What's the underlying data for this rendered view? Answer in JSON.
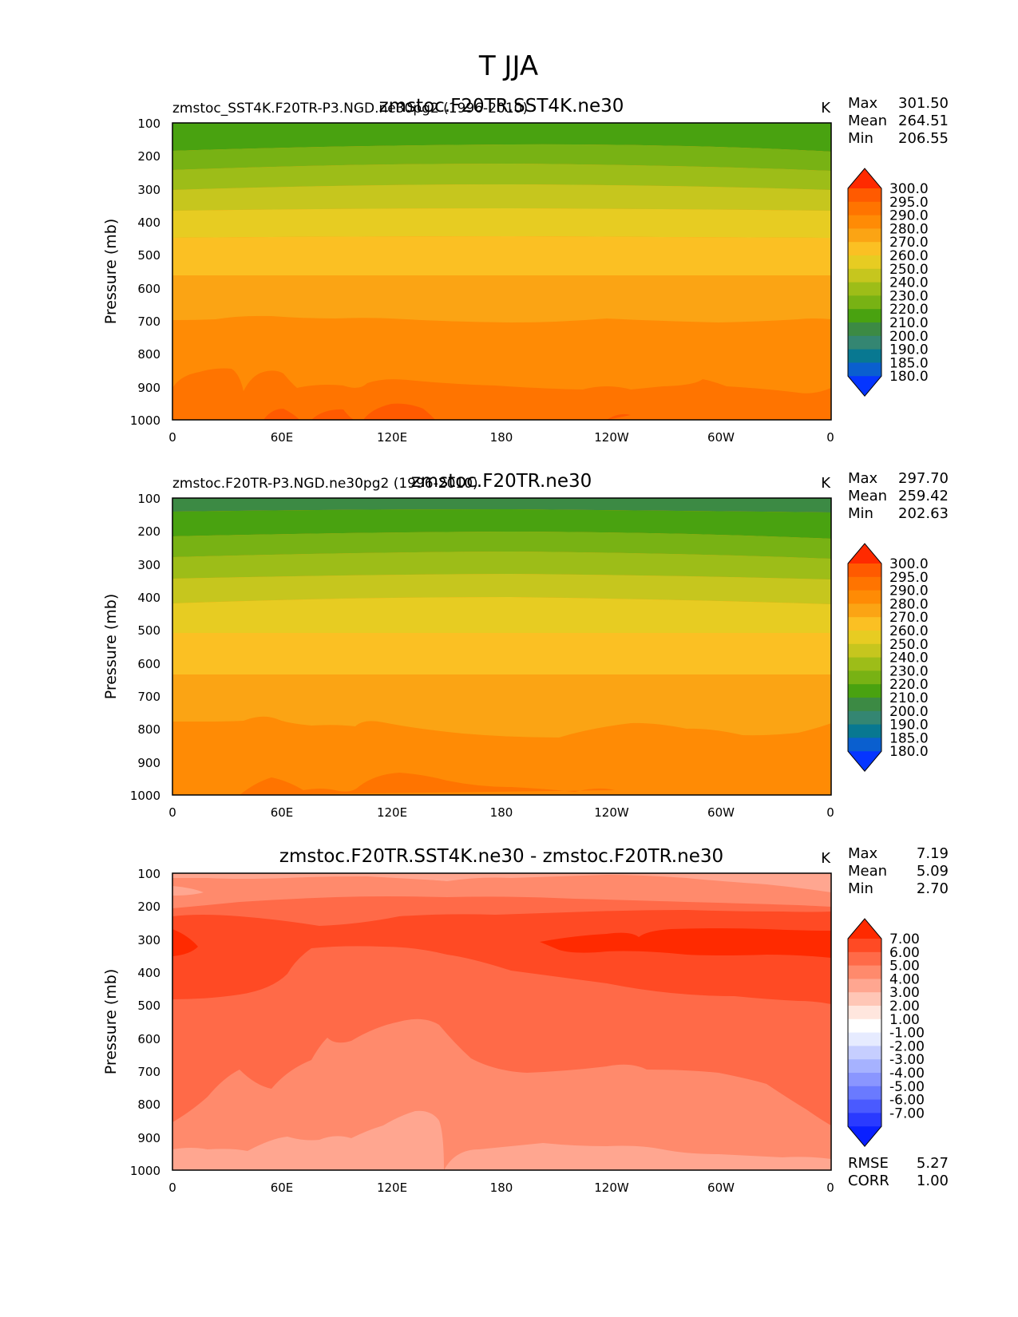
{
  "figure_title": "T JJA",
  "units": "K",
  "ylabel": "Pressure (mb)",
  "x_ticks": [
    "0",
    "60E",
    "120E",
    "180",
    "120W",
    "60W",
    "0"
  ],
  "y_ticks": [
    "100",
    "200",
    "300",
    "400",
    "500",
    "600",
    "700",
    "800",
    "900",
    "1000"
  ],
  "stats_labels": {
    "max": "Max",
    "mean": "Mean",
    "min": "Min",
    "rmse": "RMSE",
    "corr": "CORR"
  },
  "panels": [
    {
      "title": "zmstoc.F20TR.SST4K.ne30",
      "left_label": "zmstoc_SST4K.F20TR-P3.NGD.ne30pg2 (1996-2010)",
      "stats": {
        "max": "301.50",
        "mean": "264.51",
        "min": "206.55"
      },
      "colorbar_labels": [
        "300.0",
        "295.0",
        "290.0",
        "280.0",
        "270.0",
        "260.0",
        "250.0",
        "240.0",
        "230.0",
        "220.0",
        "210.0",
        "200.0",
        "190.0",
        "185.0",
        "180.0"
      ]
    },
    {
      "title": "zmstoc.F20TR.ne30",
      "left_label": "zmstoc.F20TR-P3.NGD.ne30pg2 (1996-2010)",
      "stats": {
        "max": "297.70",
        "mean": "259.42",
        "min": "202.63"
      },
      "colorbar_labels": [
        "300.0",
        "295.0",
        "290.0",
        "280.0",
        "270.0",
        "260.0",
        "250.0",
        "240.0",
        "230.0",
        "220.0",
        "210.0",
        "200.0",
        "190.0",
        "185.0",
        "180.0"
      ]
    },
    {
      "title": "zmstoc.F20TR.SST4K.ne30 - zmstoc.F20TR.ne30",
      "left_label": "",
      "stats": {
        "max": "7.19",
        "mean": "5.09",
        "min": "2.70",
        "rmse": "5.27",
        "corr": "1.00"
      },
      "colorbar_labels": [
        "7.00",
        "6.00",
        "5.00",
        "4.00",
        "3.00",
        "2.00",
        "1.00",
        "-1.00",
        "-2.00",
        "-3.00",
        "-4.00",
        "-5.00",
        "-6.00",
        "-7.00"
      ]
    }
  ],
  "chart_data": [
    {
      "type": "heatmap",
      "title": "zmstoc.F20TR.SST4K.ne30",
      "xlabel": "",
      "ylabel": "Pressure (mb)",
      "xlim": [
        0,
        360
      ],
      "ylim": [
        1000,
        100
      ],
      "units": "K",
      "contour_levels": [
        180,
        185,
        190,
        200,
        210,
        220,
        230,
        240,
        250,
        260,
        270,
        280,
        290,
        295,
        300
      ],
      "colors": [
        "#ff2a00",
        "#ff5a00",
        "#ff7400",
        "#ff8b05",
        "#fba414",
        "#fbc023",
        "#e7cc22",
        "#c6c61e",
        "#9dbd18",
        "#78b214",
        "#49a210",
        "#3c8a44",
        "#348672",
        "#087891",
        "#0a5fcf",
        "#0535ff"
      ],
      "bands": [
        {
          "p_top": 100,
          "p_bottom": 188,
          "level": "210.0-220.0"
        },
        {
          "p_top": 188,
          "p_bottom": 245,
          "level": "220.0-230.0"
        },
        {
          "p_top": 245,
          "p_bottom": 310,
          "level": "230.0-240.0"
        },
        {
          "p_top": 310,
          "p_bottom": 370,
          "level": "240.0-250.0"
        },
        {
          "p_top": 370,
          "p_bottom": 460,
          "level": "250.0-260.0"
        },
        {
          "p_top": 460,
          "p_bottom": 565,
          "level": "260.0-270.0"
        },
        {
          "p_top": 565,
          "p_bottom": 700,
          "level": "270.0-280.0"
        },
        {
          "p_top": 700,
          "p_bottom": 900,
          "level": "280.0-290.0"
        },
        {
          "p_top": 900,
          "p_bottom": 1000,
          "level": "290.0-295.0"
        }
      ]
    },
    {
      "type": "heatmap",
      "title": "zmstoc.F20TR.ne30",
      "xlabel": "",
      "ylabel": "Pressure (mb)",
      "xlim": [
        0,
        360
      ],
      "ylim": [
        1000,
        100
      ],
      "units": "K",
      "contour_levels": [
        180,
        185,
        190,
        200,
        210,
        220,
        230,
        240,
        250,
        260,
        270,
        280,
        290,
        295,
        300
      ],
      "bands": [
        {
          "p_top": 100,
          "p_bottom": 140,
          "level": "200.0-210.0"
        },
        {
          "p_top": 140,
          "p_bottom": 218,
          "level": "210.0-220.0"
        },
        {
          "p_top": 218,
          "p_bottom": 285,
          "level": "220.0-230.0"
        },
        {
          "p_top": 285,
          "p_bottom": 345,
          "level": "230.0-240.0"
        },
        {
          "p_top": 345,
          "p_bottom": 410,
          "level": "240.0-250.0"
        },
        {
          "p_top": 410,
          "p_bottom": 510,
          "level": "250.0-260.0"
        },
        {
          "p_top": 510,
          "p_bottom": 630,
          "level": "260.0-270.0"
        },
        {
          "p_top": 630,
          "p_bottom": 780,
          "level": "270.0-280.0"
        },
        {
          "p_top": 780,
          "p_bottom": 975,
          "level": "280.0-290.0"
        },
        {
          "p_top": 975,
          "p_bottom": 1000,
          "level": "290.0-295.0"
        }
      ]
    },
    {
      "type": "heatmap",
      "title": "zmstoc.F20TR.SST4K.ne30 - zmstoc.F20TR.ne30",
      "xlabel": "",
      "ylabel": "Pressure (mb)",
      "xlim": [
        0,
        360
      ],
      "ylim": [
        1000,
        100
      ],
      "units": "K",
      "contour_levels": [
        -7,
        -6,
        -5,
        -4,
        -3,
        -2,
        -1,
        1,
        2,
        3,
        4,
        5,
        6,
        7
      ],
      "colors": [
        "#ff2a00",
        "#ff4a24",
        "#ff6a48",
        "#ff8a6c",
        "#ffa690",
        "#ffc6b6",
        "#ffe6de",
        "#ffffff",
        "#e6ebff",
        "#c6ceff",
        "#a6b2ff",
        "#8a96ff",
        "#6a7aff",
        "#4a5aff",
        "#2a3aff",
        "#0a20ff"
      ],
      "bands": [
        {
          "p_top": 100,
          "p_bottom": 200,
          "level": "4.00-5.00"
        },
        {
          "p_top": 200,
          "p_bottom": 270,
          "level": "5.00-6.00"
        },
        {
          "p_top": 270,
          "p_bottom": 360,
          "level": "6.00-7.00"
        },
        {
          "p_top": 360,
          "p_bottom": 480,
          "level": "5.00-6.00"
        },
        {
          "p_top": 480,
          "p_bottom": 700,
          "level": "4.00-5.00"
        },
        {
          "p_top": 700,
          "p_bottom": 930,
          "level": "4.00-5.00"
        },
        {
          "p_top": 930,
          "p_bottom": 1000,
          "level": "3.00-4.00"
        }
      ]
    }
  ]
}
